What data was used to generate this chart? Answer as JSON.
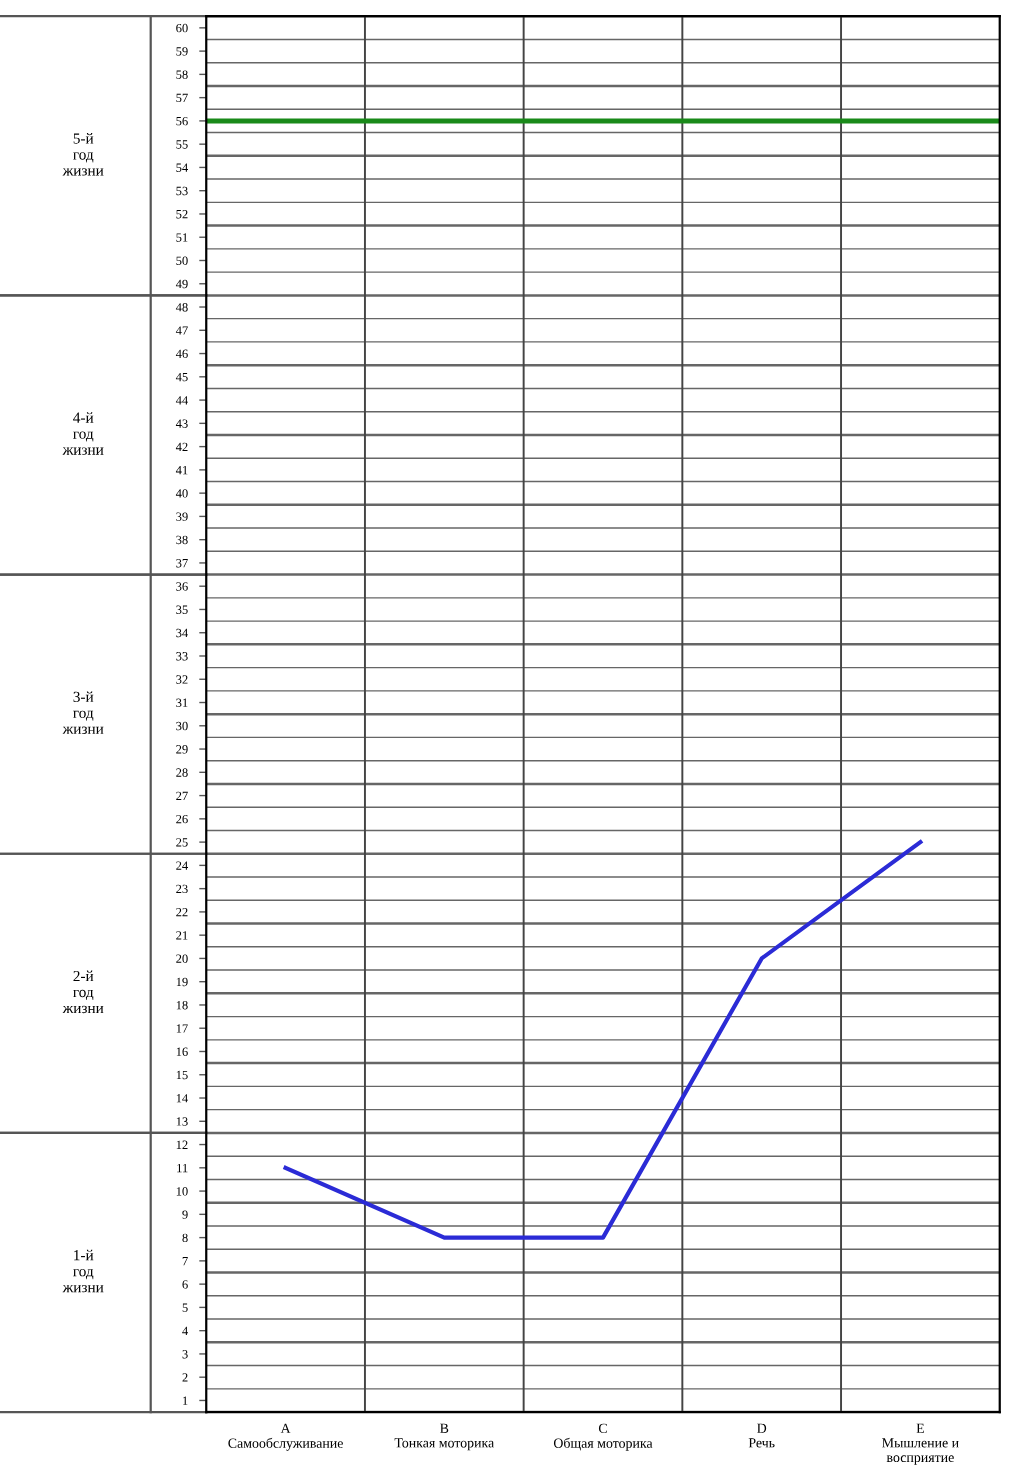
{
  "chart_data": {
    "type": "line",
    "categories": [
      "A\nСамообслуживание",
      "B\nТонкая моторика",
      "C\nОбщая моторика",
      "D\nРечь",
      "E\nМышление и\nвосприятие"
    ],
    "series": [
      {
        "color": "#2b2bd6",
        "values": [
          11,
          8,
          8,
          20,
          25
        ]
      }
    ],
    "ylim": [
      0.5,
      60.5
    ],
    "yticks": [
      1,
      2,
      3,
      4,
      5,
      6,
      7,
      8,
      9,
      10,
      11,
      12,
      13,
      14,
      15,
      16,
      17,
      18,
      19,
      20,
      21,
      22,
      23,
      24,
      25,
      26,
      27,
      28,
      29,
      30,
      31,
      32,
      33,
      34,
      35,
      36,
      37,
      38,
      39,
      40,
      41,
      42,
      43,
      44,
      45,
      46,
      47,
      48,
      49,
      50,
      51,
      52,
      53,
      54,
      55,
      56,
      57,
      58,
      59,
      60
    ],
    "grid": true,
    "ref_lines": [
      {
        "axis": "y",
        "value": 56,
        "color": "#1a8a1a"
      }
    ],
    "annotations": [
      "1-й\nгод\nжизни",
      "2-й\nгод\nжизни",
      "3-й\nгод\nжизни",
      "4-й\nгод\nжизни",
      "5-й\nгод\nжизни"
    ]
  }
}
